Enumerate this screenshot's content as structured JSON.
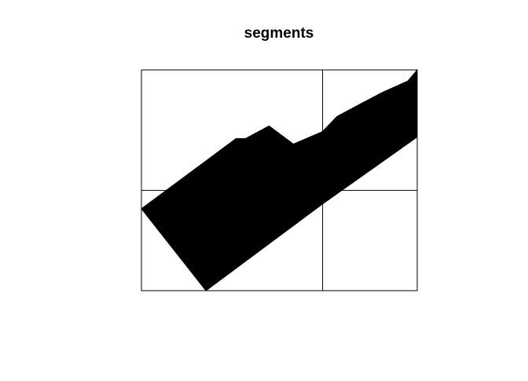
{
  "chart_data": {
    "type": "area",
    "title": "segments",
    "xlabel": "",
    "ylabel": "",
    "xlim": [
      0,
      100
    ],
    "ylim": [
      0,
      100
    ],
    "grid": {
      "vertical_at": [
        65.7
      ],
      "horizontal_at": [
        45.4
      ]
    },
    "fill_color": "#000000",
    "series": [
      {
        "name": "",
        "upper": [
          [
            0,
            37.1
          ],
          [
            34.3,
            68.9
          ],
          [
            37.7,
            68.9
          ],
          [
            46.3,
            74.6
          ],
          [
            55.1,
            66.4
          ],
          [
            65.7,
            72.1
          ],
          [
            70.9,
            78.9
          ],
          [
            80.0,
            85.0
          ],
          [
            87.7,
            90.0
          ],
          [
            96.6,
            95.0
          ],
          [
            100,
            100
          ]
        ],
        "lower": [
          [
            100,
            69.6
          ],
          [
            65.7,
            39.3
          ],
          [
            23.4,
            0
          ]
        ]
      }
    ]
  }
}
